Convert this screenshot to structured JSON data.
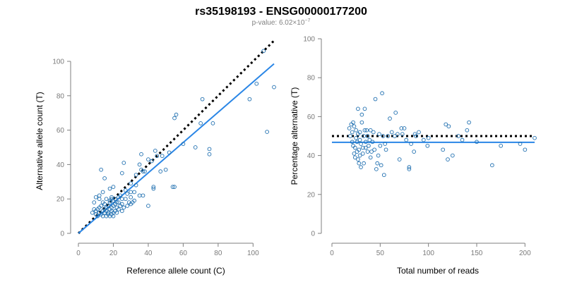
{
  "header": {
    "title": "rs35198193 - ENSG00000177200",
    "pvalue_prefix": "p-value: 6.02×10",
    "pvalue_exponent": "−7"
  },
  "chart_data": [
    {
      "type": "scatter",
      "title": "",
      "xlabel": "Reference allele count (C)",
      "ylabel": "Alternative allele count (T)",
      "xlim": [
        0,
        112
      ],
      "ylim": [
        0,
        100
      ],
      "xticks": [
        0,
        20,
        40,
        60,
        80,
        100
      ],
      "yticks": [
        0,
        20,
        40,
        60,
        80,
        100
      ],
      "colors": {
        "points": "#1f6fb0",
        "fit": "#2a86e6",
        "reference": "#000000"
      },
      "reference_line": {
        "style": "dotted",
        "slope": 1,
        "intercept": 0,
        "x_range": [
          0,
          112
        ]
      },
      "fit_line": {
        "slope": 0.88,
        "intercept": 0,
        "x_range": [
          0,
          112
        ]
      },
      "points": [
        [
          8,
          12
        ],
        [
          9,
          14
        ],
        [
          10,
          11
        ],
        [
          10,
          13
        ],
        [
          11,
          10
        ],
        [
          11,
          14
        ],
        [
          12,
          12
        ],
        [
          12,
          15
        ],
        [
          13,
          11
        ],
        [
          13,
          16
        ],
        [
          14,
          10
        ],
        [
          14,
          13
        ],
        [
          15,
          12
        ],
        [
          15,
          14
        ],
        [
          15,
          17
        ],
        [
          16,
          10
        ],
        [
          16,
          13
        ],
        [
          16,
          15
        ],
        [
          17,
          11
        ],
        [
          17,
          12
        ],
        [
          17,
          16
        ],
        [
          18,
          10
        ],
        [
          18,
          14
        ],
        [
          18,
          18
        ],
        [
          19,
          11
        ],
        [
          19,
          13
        ],
        [
          19,
          15
        ],
        [
          20,
          10
        ],
        [
          20,
          12
        ],
        [
          20,
          16
        ],
        [
          20,
          19
        ],
        [
          21,
          13
        ],
        [
          21,
          17
        ],
        [
          22,
          12
        ],
        [
          22,
          15
        ],
        [
          23,
          14
        ],
        [
          23,
          18
        ],
        [
          24,
          16
        ],
        [
          25,
          13
        ],
        [
          25,
          17
        ],
        [
          26,
          15
        ],
        [
          27,
          20
        ],
        [
          28,
          16
        ],
        [
          29,
          18
        ],
        [
          30,
          17
        ],
        [
          32,
          19
        ],
        [
          9,
          18
        ],
        [
          10,
          21
        ],
        [
          12,
          20
        ],
        [
          14,
          18
        ],
        [
          16,
          20
        ],
        [
          18,
          19
        ],
        [
          19,
          21
        ],
        [
          21,
          20
        ],
        [
          23,
          21
        ],
        [
          25,
          20
        ],
        [
          12,
          22
        ],
        [
          14,
          24
        ],
        [
          13,
          37
        ],
        [
          15,
          32
        ],
        [
          18,
          26
        ],
        [
          20,
          27
        ],
        [
          24,
          22
        ],
        [
          25,
          35
        ],
        [
          26,
          41
        ],
        [
          27,
          25
        ],
        [
          28,
          23
        ],
        [
          30,
          24
        ],
        [
          30,
          29
        ],
        [
          32,
          24
        ],
        [
          33,
          28
        ],
        [
          33,
          34
        ],
        [
          35,
          40
        ],
        [
          36,
          37
        ],
        [
          37,
          36
        ],
        [
          38,
          36
        ],
        [
          40,
          43
        ],
        [
          42,
          42
        ],
        [
          43,
          27
        ],
        [
          43,
          26
        ],
        [
          44,
          48
        ],
        [
          45,
          45
        ],
        [
          48,
          45
        ],
        [
          47,
          36
        ],
        [
          50,
          37
        ],
        [
          52,
          47
        ],
        [
          54,
          27
        ],
        [
          55,
          27
        ],
        [
          55,
          67
        ],
        [
          56,
          69
        ],
        [
          36,
          46
        ],
        [
          37,
          22
        ],
        [
          40,
          16
        ],
        [
          60,
          52
        ],
        [
          67,
          50
        ],
        [
          70,
          64
        ],
        [
          71,
          78
        ],
        [
          75,
          46
        ],
        [
          75,
          49
        ],
        [
          77,
          64
        ],
        [
          98,
          78
        ],
        [
          102,
          87
        ],
        [
          106,
          106
        ],
        [
          108,
          59
        ],
        [
          112,
          85
        ],
        [
          30,
          21
        ],
        [
          31,
          18
        ],
        [
          19,
          20
        ],
        [
          22,
          18
        ],
        [
          35,
          22
        ]
      ]
    },
    {
      "type": "scatter",
      "title": "",
      "xlabel": "Total number of reads",
      "ylabel": "Percentage alternative (T)",
      "xlim": [
        0,
        210
      ],
      "ylim": [
        0,
        100
      ],
      "xticks": [
        0,
        50,
        100,
        150,
        200
      ],
      "yticks": [
        0,
        20,
        40,
        60,
        80,
        100
      ],
      "colors": {
        "points": "#1f6fb0",
        "fit": "#2a86e6",
        "reference": "#000000"
      },
      "reference_line": {
        "style": "dotted",
        "value": 50
      },
      "fit_line": {
        "value": 46.8
      },
      "points": [
        [
          18,
          54
        ],
        [
          19,
          50
        ],
        [
          20,
          56
        ],
        [
          21,
          52
        ],
        [
          21,
          47
        ],
        [
          22,
          45
        ],
        [
          22,
          57
        ],
        [
          23,
          41
        ],
        [
          23,
          55
        ],
        [
          24,
          44
        ],
        [
          24,
          39
        ],
        [
          25,
          49
        ],
        [
          25,
          53
        ],
        [
          26,
          42
        ],
        [
          26,
          47
        ],
        [
          27,
          38
        ],
        [
          27,
          51
        ],
        [
          27,
          64
        ],
        [
          28,
          43
        ],
        [
          28,
          36
        ],
        [
          29,
          52
        ],
        [
          29,
          48
        ],
        [
          29,
          40
        ],
        [
          30,
          34
        ],
        [
          30,
          46
        ],
        [
          31,
          57
        ],
        [
          31,
          61
        ],
        [
          32,
          44
        ],
        [
          32,
          41
        ],
        [
          33,
          50
        ],
        [
          33,
          36
        ],
        [
          34,
          53
        ],
        [
          34,
          64
        ],
        [
          35,
          47
        ],
        [
          35,
          44
        ],
        [
          36,
          53
        ],
        [
          37,
          50
        ],
        [
          37,
          42
        ],
        [
          38,
          45
        ],
        [
          39,
          48
        ],
        [
          40,
          53
        ],
        [
          40,
          39
        ],
        [
          41,
          42
        ],
        [
          42,
          47
        ],
        [
          43,
          52
        ],
        [
          44,
          43
        ],
        [
          45,
          69
        ],
        [
          46,
          33
        ],
        [
          47,
          36
        ],
        [
          48,
          40
        ],
        [
          49,
          51
        ],
        [
          50,
          45
        ],
        [
          51,
          35
        ],
        [
          52,
          72
        ],
        [
          53,
          50
        ],
        [
          54,
          30
        ],
        [
          55,
          46
        ],
        [
          56,
          43
        ],
        [
          58,
          50
        ],
        [
          60,
          59
        ],
        [
          62,
          52
        ],
        [
          65,
          50
        ],
        [
          66,
          62
        ],
        [
          68,
          51
        ],
        [
          70,
          38
        ],
        [
          72,
          54
        ],
        [
          73,
          51
        ],
        [
          75,
          54
        ],
        [
          77,
          48
        ],
        [
          80,
          34
        ],
        [
          80,
          33
        ],
        [
          82,
          46
        ],
        [
          85,
          42
        ],
        [
          86,
          51
        ],
        [
          87,
          50
        ],
        [
          90,
          52
        ],
        [
          95,
          48
        ],
        [
          99,
          45
        ],
        [
          100,
          49
        ],
        [
          115,
          43
        ],
        [
          120,
          38
        ],
        [
          121,
          55
        ],
        [
          125,
          40
        ],
        [
          131,
          50
        ],
        [
          135,
          48
        ],
        [
          140,
          53
        ],
        [
          150,
          47
        ],
        [
          166,
          35
        ],
        [
          175,
          45
        ],
        [
          195,
          46
        ],
        [
          200,
          43
        ],
        [
          210,
          49
        ],
        [
          142,
          57
        ],
        [
          118,
          56
        ]
      ]
    }
  ]
}
